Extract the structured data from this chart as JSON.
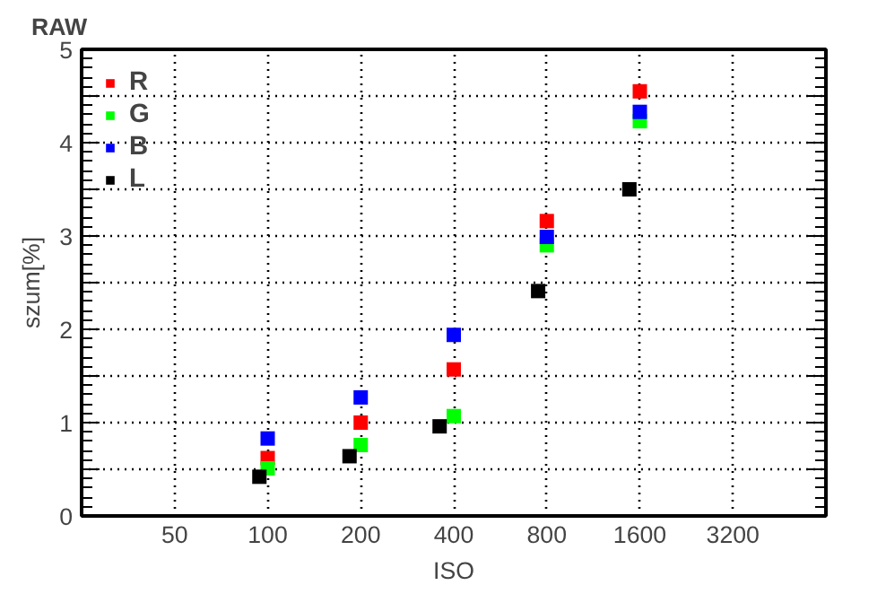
{
  "chart_data": {
    "type": "scatter",
    "title": "RAW",
    "xlabel": "ISO",
    "ylabel": "szum[%]",
    "log": "x",
    "xlim": [
      25,
      6400
    ],
    "xticks": [
      50,
      100,
      200,
      400,
      800,
      1600,
      3200
    ],
    "ylim": [
      0,
      5
    ],
    "yticks": [
      0,
      {
        "value": 0.5,
        "label": null
      },
      1,
      {
        "value": 1.5,
        "label": null
      },
      2,
      {
        "value": 2.5,
        "label": null
      },
      3,
      {
        "value": 3.5,
        "label": null
      },
      4,
      {
        "value": 4.5,
        "label": null
      },
      5
    ],
    "grid": true,
    "legend": "top left",
    "marker": "square",
    "x": [
      100,
      200,
      400,
      800,
      1600
    ],
    "series": [
      {
        "name": "R",
        "color": "#ff0000",
        "values": [
          0.62,
          1.0,
          1.57,
          3.16,
          4.55
        ]
      },
      {
        "name": "G",
        "color": "#00ff00",
        "values": [
          0.51,
          0.76,
          1.07,
          2.9,
          4.23
        ]
      },
      {
        "name": "B",
        "color": "#0000ff",
        "values": [
          0.83,
          1.27,
          1.94,
          2.99,
          4.33
        ]
      },
      {
        "name": "L",
        "color": "#000000",
        "x": [
          94,
          184,
          360,
          750,
          1480
        ],
        "values": [
          0.42,
          0.64,
          0.96,
          2.41,
          3.5
        ]
      }
    ]
  }
}
